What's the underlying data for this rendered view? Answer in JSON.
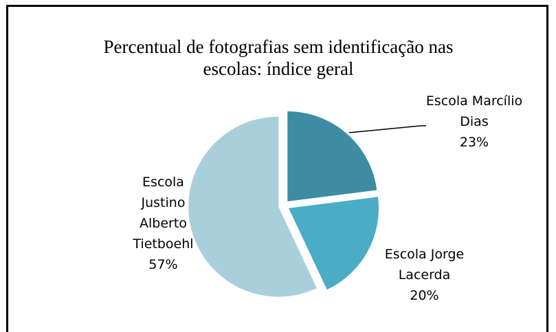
{
  "chart_data": {
    "type": "pie",
    "title": "Percentual de fotografias sem identificação nas escolas: índice geral",
    "categories": [
      "Escola Marcílio Dias",
      "Escola Jorge Lacerda",
      "Escola Justino Alberto Tietboehl"
    ],
    "values": [
      23,
      20,
      57
    ],
    "value_labels": [
      "23%",
      "20%",
      "57%"
    ],
    "colors": [
      "#3d8ca3",
      "#4bacc6",
      "#a9cfdd"
    ]
  }
}
